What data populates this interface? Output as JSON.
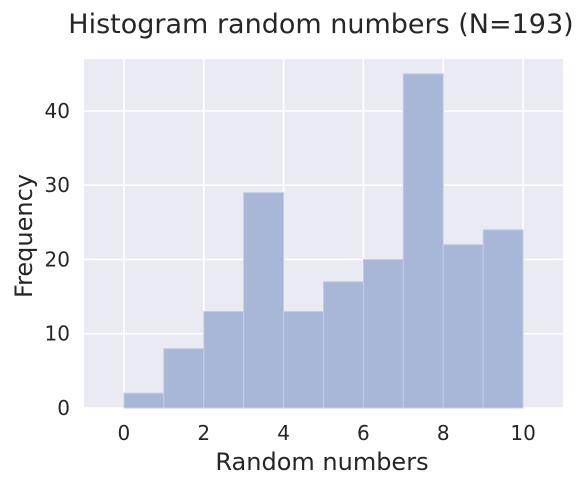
{
  "chart_data": {
    "type": "bar",
    "title": "Histogram random numbers (N=193)",
    "xlabel": "Random numbers",
    "ylabel": "Frequency",
    "bins": [
      {
        "start": 0,
        "end": 1,
        "count": 2
      },
      {
        "start": 1,
        "end": 2,
        "count": 8
      },
      {
        "start": 2,
        "end": 3,
        "count": 13
      },
      {
        "start": 3,
        "end": 4,
        "count": 29
      },
      {
        "start": 4,
        "end": 5,
        "count": 13
      },
      {
        "start": 5,
        "end": 6,
        "count": 17
      },
      {
        "start": 6,
        "end": 7,
        "count": 20
      },
      {
        "start": 7,
        "end": 8,
        "count": 45
      },
      {
        "start": 8,
        "end": 9,
        "count": 22
      },
      {
        "start": 9,
        "end": 10,
        "count": 24
      }
    ],
    "xlim": [
      -1,
      11
    ],
    "ylim": [
      0,
      47
    ],
    "xticks": [
      "0",
      "2",
      "4",
      "6",
      "8",
      "10"
    ],
    "yticks": [
      "0",
      "10",
      "20",
      "30",
      "40"
    ],
    "grid": true,
    "colors": {
      "background": "#eaeaf2",
      "grid": "#ffffff",
      "bar": "#a8b7d7",
      "bar_edge": "#c4cde3"
    }
  }
}
